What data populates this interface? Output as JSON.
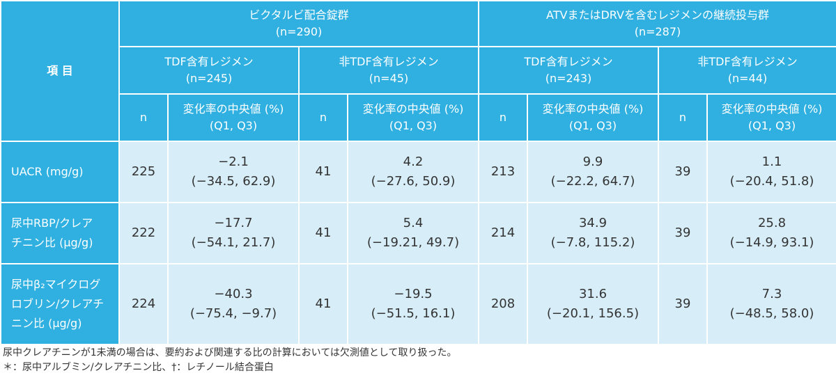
{
  "header": {
    "item_label": "項 目",
    "group1": {
      "name": "ビクタルビ配合錠群",
      "n": "(n=290)"
    },
    "group2": {
      "name": "ATVまたはDRVを含むレジメンの継続投与群",
      "n": "(n=287)"
    },
    "subgroups": [
      {
        "name": "TDF含有レジメン",
        "n": "(n=245)"
      },
      {
        "name": "非TDF含有レジメン",
        "n": "(n=45)"
      },
      {
        "name": "TDF含有レジメン",
        "n": "(n=243)"
      },
      {
        "name": "非TDF含有レジメン",
        "n": "(n=44)"
      }
    ],
    "n_label": "n",
    "median_label": "変化率の中央値 (%)",
    "quartile_label": "(Q1, Q3)"
  },
  "rows": [
    {
      "label_lines": [
        "UACR (mg/g)"
      ],
      "cells": [
        {
          "n": "225",
          "median": "−2.1",
          "range": "(−34.5, 62.9)"
        },
        {
          "n": "41",
          "median": "4.2",
          "range": "(−27.6, 50.9)"
        },
        {
          "n": "213",
          "median": "9.9",
          "range": "(−22.2, 64.7)"
        },
        {
          "n": "39",
          "median": "1.1",
          "range": "(−20.4, 51.8)"
        }
      ]
    },
    {
      "label_lines": [
        "尿中RBP/クレア",
        "チニン比 (μg/g)"
      ],
      "cells": [
        {
          "n": "222",
          "median": "−17.7",
          "range": "(−54.1, 21.7)"
        },
        {
          "n": "41",
          "median": "5.4",
          "range": "(−19.21, 49.7)"
        },
        {
          "n": "214",
          "median": "34.9",
          "range": "(−7.8, 115.2)"
        },
        {
          "n": "39",
          "median": "25.8",
          "range": "(−14.9, 93.1)"
        }
      ]
    },
    {
      "label_lines": [
        "尿中β₂マイクログ",
        "ロブリン/クレアチ",
        "ニン比 (μg/g)"
      ],
      "cells": [
        {
          "n": "224",
          "median": "−40.3",
          "range": "(−75.4, −9.7)"
        },
        {
          "n": "41",
          "median": "−19.5",
          "range": "(−51.5, 16.1)"
        },
        {
          "n": "208",
          "median": "31.6",
          "range": "(−20.1, 156.5)"
        },
        {
          "n": "39",
          "median": "7.3",
          "range": "(−48.5, 58.0)"
        }
      ]
    }
  ],
  "notes": [
    "尿中クレアチニンが1未満の場合は、要約および関連する比の計算においては欠測値として取り扱った。",
    "＊：尿中アルブミン/クレアチニン比、†：レチノール結合蛋白"
  ]
}
